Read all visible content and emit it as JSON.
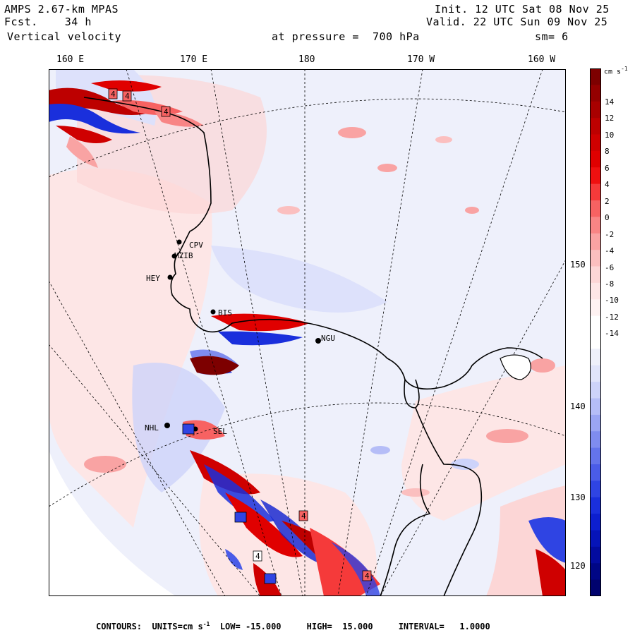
{
  "header": {
    "model": "AMPS 2.67-km MPAS",
    "fcst_label": "Fcst.",
    "fcst_value": "34 h",
    "field": "Vertical velocity",
    "init_label": "Init.",
    "init_value": "12 UTC Sat 08 Nov 25",
    "valid_label": "Valid.",
    "valid_value": "22 UTC Sun 09 Nov 25",
    "level_text": "at pressure =  700 hPa",
    "smoothing": "sm= 6"
  },
  "lon_labels": [
    "160 E",
    "170 E",
    "180",
    "170 W",
    "160 W"
  ],
  "lat_labels": [
    "150 W",
    "140 W",
    "130 W",
    "120 W"
  ],
  "stations": [
    "CPV",
    "MZIB",
    "HEY",
    "BIS",
    "NGU",
    "NHL",
    "SEL"
  ],
  "colorbar": {
    "units": "cm s",
    "units_exp": "-1",
    "ticks": [
      "14",
      "12",
      "10",
      "8",
      "6",
      "4",
      "2",
      "0",
      "-2",
      "-4",
      "-6",
      "-8",
      "-10",
      "-12",
      "-14"
    ],
    "colors_top_to_bottom": [
      "#7d0000",
      "#940000",
      "#a80000",
      "#bd0000",
      "#cf0000",
      "#e00000",
      "#ef1010",
      "#f53a3a",
      "#f76262",
      "#f88585",
      "#f9a3a3",
      "#fbbfbf",
      "#fcd6d6",
      "#fde6e6",
      "#fef2f2",
      "#ffffff",
      "#ffffff",
      "#eef0fb",
      "#e0e4fb",
      "#cdd3fa",
      "#b5bdf7",
      "#9aa5f3",
      "#7f8cef",
      "#6474eb",
      "#4a5ce8",
      "#2f44e3",
      "#1a2fdc",
      "#0d1fcf",
      "#0614b8",
      "#030b9f",
      "#000685",
      "#00026e"
    ]
  },
  "footer": {
    "contours_label": "CONTOURS:",
    "units_text": "UNITS=cm s",
    "units_exp": "-1",
    "low_text": "LOW= -15.000",
    "high_text": "HIGH=  15.000",
    "interval_text": "INTERVAL=   1.0000"
  },
  "contour_label_value": "4"
}
